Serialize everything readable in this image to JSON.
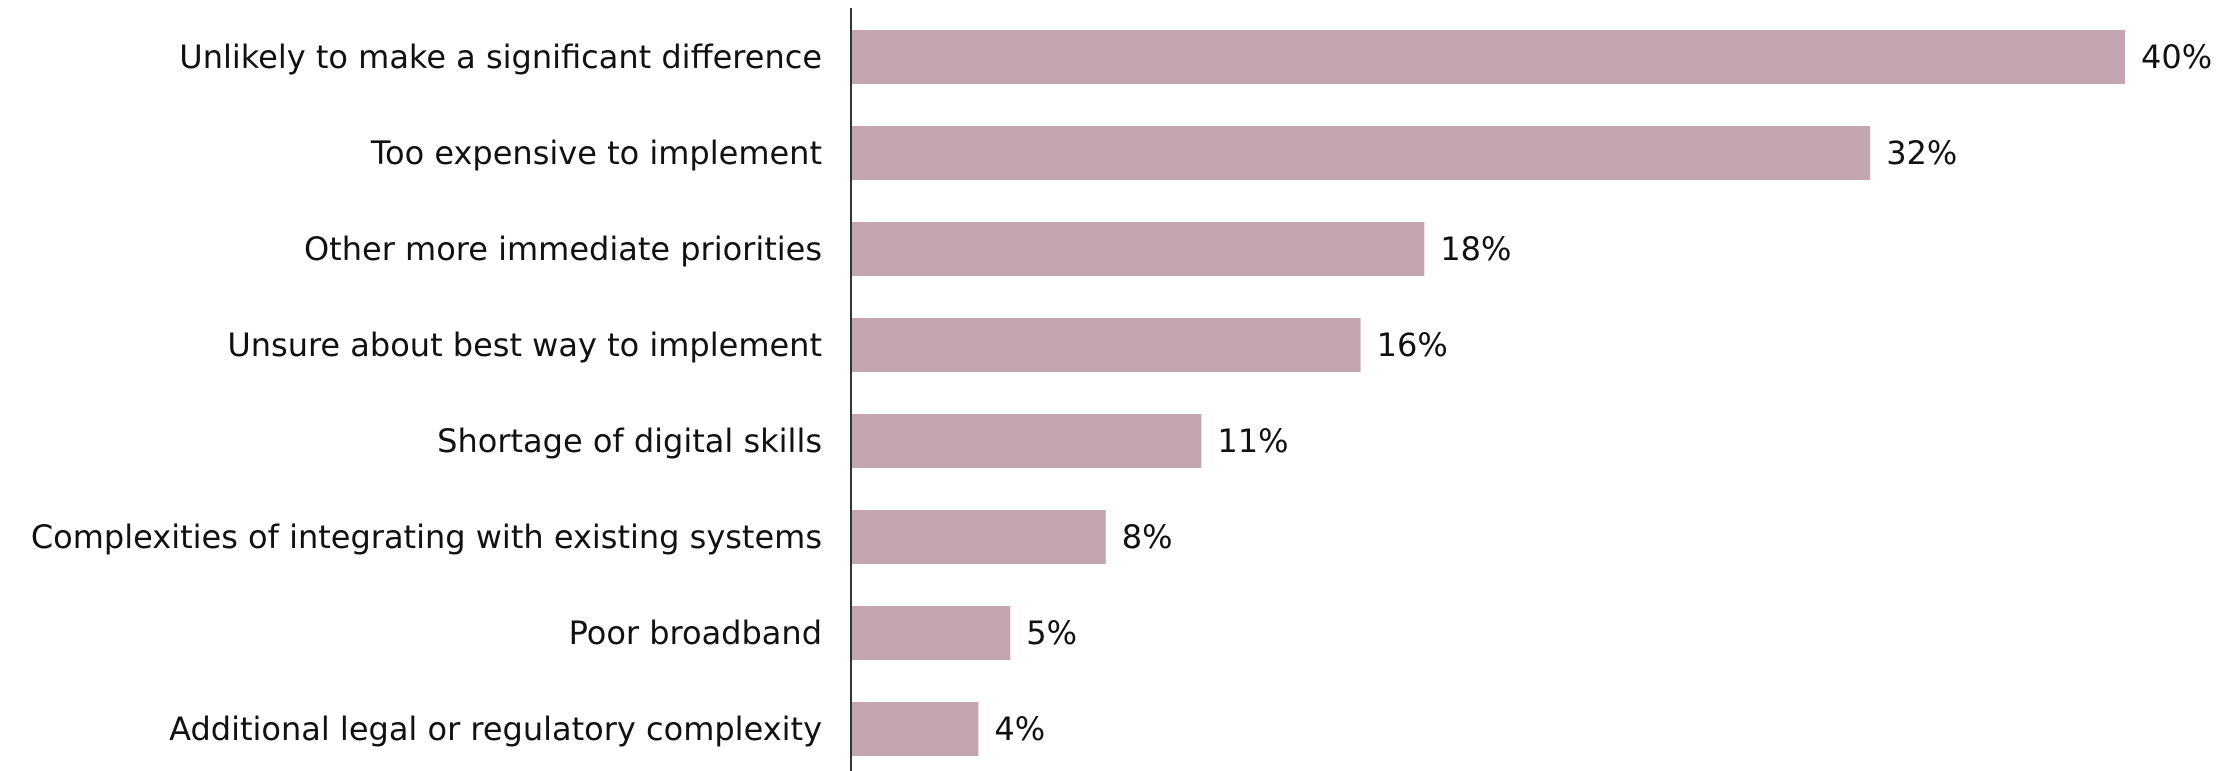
{
  "chart_data": {
    "type": "bar",
    "orientation": "horizontal",
    "categories": [
      "Unlikely to make a significant difference",
      "Too expensive to implement",
      "Other more immediate priorities",
      "Unsure about best way to implement",
      "Shortage of digital skills",
      "Complexities of integrating with existing systems",
      "Poor broadband",
      "Additional legal or regulatory complexity"
    ],
    "values": [
      40,
      32,
      18,
      16,
      11,
      8,
      5,
      4
    ],
    "value_labels": [
      "40%",
      "32%",
      "18%",
      "16%",
      "11%",
      "8%",
      "5%",
      "4%"
    ],
    "unit": "%",
    "xlim": [
      0,
      40
    ],
    "bar_color": "#c4a6b3",
    "axis_color": "#333333",
    "grid": false,
    "legend": "none"
  }
}
